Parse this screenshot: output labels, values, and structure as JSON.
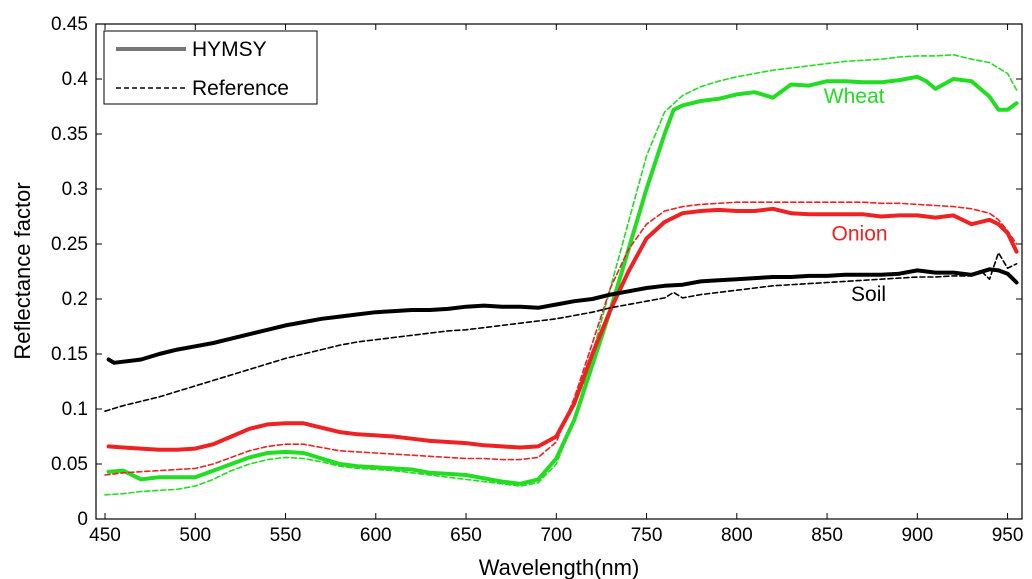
{
  "chart_data": {
    "type": "line",
    "xlabel": "Wavelength(nm)",
    "ylabel": "Reflectance factor",
    "xlim": [
      445,
      958
    ],
    "ylim": [
      0,
      0.45
    ],
    "xticks": [
      450,
      500,
      550,
      600,
      650,
      700,
      750,
      800,
      850,
      900,
      950
    ],
    "yticks": [
      0,
      0.05,
      0.1,
      0.15,
      0.2,
      0.25,
      0.3,
      0.35,
      0.4,
      0.45
    ],
    "ytick_labels": [
      "0",
      "0.05",
      "0.1",
      "0.15",
      "0.2",
      "0.25",
      "0.3",
      "0.35",
      "0.4",
      "0.45"
    ],
    "grid": false,
    "legend": {
      "position": "top-left",
      "entries": [
        {
          "label": "HYMSY",
          "style": "solid"
        },
        {
          "label": "Reference",
          "style": "dashed"
        }
      ]
    },
    "annotations": [
      {
        "text": "Wheat",
        "color": "#22dd22",
        "x": 865,
        "y": 0.378
      },
      {
        "text": "Onion",
        "color": "#ee2222",
        "x": 868,
        "y": 0.253
      },
      {
        "text": "Soil",
        "color": "#000000",
        "x": 873,
        "y": 0.198
      }
    ],
    "series": [
      {
        "label": "Wheat",
        "source": "HYMSY",
        "color": "#22dd22",
        "style": "solid",
        "x": [
          452,
          460,
          470,
          480,
          490,
          500,
          510,
          520,
          530,
          540,
          550,
          560,
          570,
          580,
          590,
          600,
          610,
          620,
          630,
          640,
          650,
          660,
          670,
          680,
          690,
          700,
          710,
          720,
          730,
          740,
          750,
          760,
          765,
          770,
          780,
          790,
          800,
          810,
          820,
          830,
          840,
          850,
          860,
          870,
          880,
          890,
          900,
          905,
          910,
          920,
          930,
          940,
          945,
          950,
          955
        ],
        "y": [
          0.043,
          0.044,
          0.036,
          0.038,
          0.038,
          0.038,
          0.044,
          0.05,
          0.056,
          0.06,
          0.061,
          0.06,
          0.055,
          0.05,
          0.048,
          0.047,
          0.046,
          0.045,
          0.042,
          0.041,
          0.04,
          0.037,
          0.034,
          0.032,
          0.036,
          0.055,
          0.09,
          0.14,
          0.19,
          0.245,
          0.3,
          0.35,
          0.372,
          0.376,
          0.38,
          0.382,
          0.386,
          0.388,
          0.383,
          0.395,
          0.394,
          0.398,
          0.398,
          0.397,
          0.397,
          0.399,
          0.402,
          0.398,
          0.391,
          0.4,
          0.398,
          0.384,
          0.372,
          0.372,
          0.378
        ]
      },
      {
        "label": "Wheat",
        "source": "Reference",
        "color": "#22dd22",
        "style": "dashed",
        "x": [
          450,
          460,
          470,
          480,
          490,
          500,
          510,
          520,
          530,
          540,
          550,
          560,
          570,
          580,
          590,
          600,
          610,
          620,
          630,
          640,
          650,
          660,
          670,
          680,
          690,
          700,
          710,
          720,
          730,
          740,
          750,
          760,
          770,
          780,
          790,
          800,
          810,
          820,
          830,
          840,
          850,
          860,
          870,
          880,
          890,
          900,
          910,
          920,
          930,
          940,
          945,
          950,
          955
        ],
        "y": [
          0.022,
          0.023,
          0.025,
          0.026,
          0.027,
          0.03,
          0.036,
          0.044,
          0.05,
          0.054,
          0.056,
          0.055,
          0.052,
          0.048,
          0.046,
          0.045,
          0.044,
          0.042,
          0.04,
          0.038,
          0.036,
          0.034,
          0.032,
          0.03,
          0.033,
          0.05,
          0.09,
          0.15,
          0.21,
          0.27,
          0.33,
          0.37,
          0.385,
          0.393,
          0.398,
          0.402,
          0.405,
          0.408,
          0.41,
          0.412,
          0.414,
          0.416,
          0.417,
          0.418,
          0.42,
          0.421,
          0.421,
          0.422,
          0.418,
          0.415,
          0.41,
          0.405,
          0.39
        ]
      },
      {
        "label": "Onion",
        "source": "HYMSY",
        "color": "#ee2222",
        "style": "solid",
        "x": [
          452,
          460,
          470,
          480,
          490,
          500,
          510,
          520,
          530,
          540,
          550,
          560,
          570,
          580,
          590,
          600,
          610,
          620,
          630,
          640,
          650,
          660,
          670,
          680,
          690,
          700,
          710,
          720,
          730,
          740,
          750,
          760,
          770,
          780,
          790,
          800,
          810,
          820,
          830,
          840,
          850,
          860,
          870,
          880,
          890,
          900,
          910,
          920,
          930,
          940,
          945,
          950,
          955
        ],
        "y": [
          0.066,
          0.065,
          0.064,
          0.063,
          0.063,
          0.064,
          0.068,
          0.075,
          0.082,
          0.086,
          0.087,
          0.087,
          0.083,
          0.079,
          0.077,
          0.076,
          0.075,
          0.073,
          0.071,
          0.07,
          0.069,
          0.067,
          0.066,
          0.065,
          0.066,
          0.075,
          0.105,
          0.15,
          0.19,
          0.225,
          0.255,
          0.27,
          0.278,
          0.28,
          0.281,
          0.28,
          0.28,
          0.282,
          0.278,
          0.277,
          0.277,
          0.277,
          0.277,
          0.275,
          0.276,
          0.276,
          0.274,
          0.276,
          0.268,
          0.272,
          0.268,
          0.26,
          0.243
        ]
      },
      {
        "label": "Onion",
        "source": "Reference",
        "color": "#ee2222",
        "style": "dashed",
        "x": [
          450,
          460,
          470,
          480,
          490,
          500,
          510,
          520,
          530,
          540,
          550,
          560,
          570,
          580,
          590,
          600,
          610,
          620,
          630,
          640,
          650,
          660,
          670,
          680,
          690,
          700,
          710,
          720,
          730,
          740,
          750,
          760,
          770,
          780,
          790,
          800,
          810,
          820,
          830,
          840,
          850,
          860,
          870,
          880,
          890,
          900,
          910,
          920,
          930,
          940,
          945,
          950,
          955
        ],
        "y": [
          0.04,
          0.042,
          0.043,
          0.044,
          0.045,
          0.046,
          0.05,
          0.056,
          0.062,
          0.066,
          0.068,
          0.068,
          0.065,
          0.062,
          0.061,
          0.06,
          0.059,
          0.058,
          0.057,
          0.056,
          0.055,
          0.055,
          0.054,
          0.054,
          0.056,
          0.07,
          0.11,
          0.16,
          0.21,
          0.245,
          0.268,
          0.28,
          0.284,
          0.286,
          0.287,
          0.288,
          0.288,
          0.288,
          0.288,
          0.288,
          0.288,
          0.288,
          0.288,
          0.287,
          0.287,
          0.286,
          0.285,
          0.284,
          0.282,
          0.278,
          0.272,
          0.262,
          0.25
        ]
      },
      {
        "label": "Soil",
        "source": "HYMSY",
        "color": "#000000",
        "style": "solid",
        "x": [
          452,
          455,
          460,
          470,
          480,
          490,
          500,
          510,
          520,
          530,
          540,
          550,
          560,
          570,
          580,
          590,
          600,
          610,
          620,
          630,
          640,
          650,
          660,
          670,
          680,
          690,
          700,
          710,
          720,
          730,
          740,
          750,
          760,
          770,
          780,
          790,
          800,
          810,
          820,
          830,
          840,
          850,
          860,
          870,
          880,
          890,
          900,
          910,
          920,
          930,
          940,
          945,
          950,
          955
        ],
        "y": [
          0.145,
          0.142,
          0.143,
          0.145,
          0.15,
          0.154,
          0.157,
          0.16,
          0.164,
          0.168,
          0.172,
          0.176,
          0.179,
          0.182,
          0.184,
          0.186,
          0.188,
          0.189,
          0.19,
          0.19,
          0.191,
          0.193,
          0.194,
          0.193,
          0.193,
          0.192,
          0.195,
          0.198,
          0.2,
          0.204,
          0.207,
          0.21,
          0.212,
          0.213,
          0.216,
          0.217,
          0.218,
          0.219,
          0.22,
          0.22,
          0.221,
          0.221,
          0.222,
          0.222,
          0.222,
          0.223,
          0.226,
          0.224,
          0.224,
          0.222,
          0.227,
          0.226,
          0.223,
          0.215
        ]
      },
      {
        "label": "Soil",
        "source": "Reference",
        "color": "#000000",
        "style": "dashed",
        "x": [
          450,
          460,
          470,
          480,
          490,
          500,
          510,
          520,
          530,
          540,
          550,
          560,
          570,
          580,
          590,
          600,
          610,
          620,
          630,
          640,
          650,
          660,
          670,
          680,
          690,
          700,
          710,
          720,
          730,
          740,
          750,
          760,
          765,
          770,
          780,
          790,
          800,
          810,
          820,
          830,
          840,
          850,
          860,
          870,
          880,
          890,
          900,
          910,
          920,
          930,
          935,
          940,
          945,
          950,
          955
        ],
        "y": [
          0.098,
          0.103,
          0.107,
          0.111,
          0.116,
          0.121,
          0.126,
          0.131,
          0.136,
          0.141,
          0.146,
          0.15,
          0.154,
          0.158,
          0.161,
          0.163,
          0.165,
          0.167,
          0.169,
          0.171,
          0.172,
          0.174,
          0.176,
          0.178,
          0.18,
          0.182,
          0.185,
          0.188,
          0.192,
          0.195,
          0.198,
          0.201,
          0.206,
          0.201,
          0.204,
          0.206,
          0.208,
          0.21,
          0.212,
          0.213,
          0.214,
          0.215,
          0.216,
          0.217,
          0.218,
          0.219,
          0.22,
          0.22,
          0.221,
          0.221,
          0.226,
          0.218,
          0.242,
          0.228,
          0.232
        ]
      }
    ]
  }
}
